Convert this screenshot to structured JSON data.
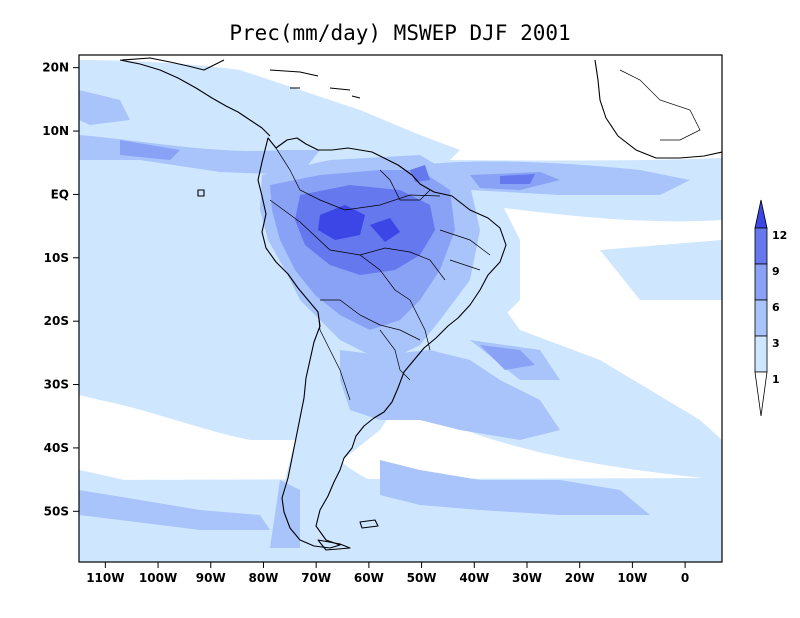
{
  "title": "Prec(mm/day) MSWEP DJF 2001",
  "colors": {
    "level_1": "#cfe6ff",
    "level_3": "#a8c4fb",
    "level_6": "#8aa2f5",
    "level_9": "#6578ee",
    "level_12": "#3c46e6",
    "frame": "#000000"
  },
  "map": {
    "lon_range": [
      -115,
      7
    ],
    "lat_range": [
      -58,
      22
    ],
    "y_ticks": [
      "20N",
      "10N",
      "EQ",
      "10S",
      "20S",
      "30S",
      "40S",
      "50S"
    ],
    "y_tick_values": [
      20,
      10,
      0,
      -10,
      -20,
      -30,
      -40,
      -50
    ],
    "x_ticks": [
      "110W",
      "100W",
      "90W",
      "80W",
      "70W",
      "60W",
      "50W",
      "40W",
      "30W",
      "20W",
      "10W",
      "0"
    ],
    "x_tick_values": [
      -110,
      -100,
      -90,
      -80,
      -70,
      -60,
      -50,
      -40,
      -30,
      -20,
      -10,
      0
    ]
  },
  "colorbar": {
    "levels": [
      "1",
      "3",
      "6",
      "9",
      "12"
    ],
    "units": "mm/day"
  }
}
